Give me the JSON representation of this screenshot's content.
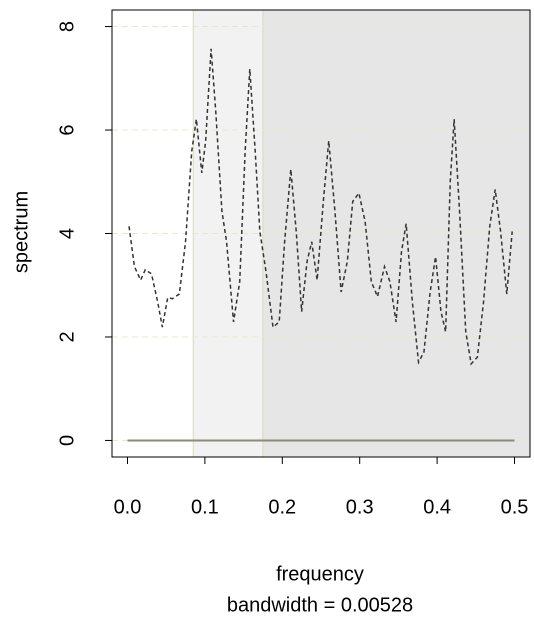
{
  "chart_data": {
    "type": "line",
    "xlabel": "frequency",
    "sublabel": "bandwidth = 0.00528",
    "ylabel": "spectrum",
    "x": [
      0.002,
      0.009,
      0.017,
      0.023,
      0.031,
      0.039,
      0.045,
      0.052,
      0.058,
      0.067,
      0.075,
      0.083,
      0.089,
      0.096,
      0.101,
      0.108,
      0.114,
      0.122,
      0.128,
      0.137,
      0.145,
      0.152,
      0.158,
      0.165,
      0.171,
      0.179,
      0.188,
      0.196,
      0.203,
      0.211,
      0.218,
      0.225,
      0.232,
      0.238,
      0.245,
      0.253,
      0.26,
      0.268,
      0.276,
      0.284,
      0.291,
      0.299,
      0.307,
      0.315,
      0.323,
      0.332,
      0.339,
      0.347,
      0.354,
      0.36,
      0.368,
      0.376,
      0.383,
      0.391,
      0.398,
      0.405,
      0.411,
      0.417,
      0.422,
      0.429,
      0.437,
      0.444,
      0.452,
      0.46,
      0.468,
      0.475,
      0.482,
      0.49,
      0.497
    ],
    "series": [
      {
        "color": "#333333",
        "dash": "4,3",
        "values": [
          4.14,
          3.36,
          3.1,
          3.3,
          3.22,
          2.68,
          2.19,
          2.76,
          2.74,
          2.83,
          3.84,
          5.59,
          6.21,
          5.17,
          5.79,
          7.57,
          6.37,
          4.43,
          3.84,
          2.29,
          3.07,
          5.59,
          7.18,
          5.59,
          4.04,
          3.26,
          2.19,
          2.29,
          3.84,
          5.24,
          4.04,
          2.49,
          3.46,
          3.84,
          3.1,
          4.62,
          5.79,
          4.43,
          2.87,
          3.46,
          4.62,
          4.78,
          4.23,
          3.07,
          2.78,
          3.36,
          3.07,
          2.29,
          3.65,
          4.19,
          2.68,
          1.51,
          1.71,
          2.87,
          3.55,
          2.49,
          2.1,
          5.01,
          6.21,
          4.43,
          2.1,
          1.48,
          1.61,
          2.68,
          4.14,
          4.85,
          4.04,
          2.83,
          4.04
        ]
      }
    ],
    "xlim": [
      -0.02,
      0.52
    ],
    "ylim": [
      -0.32,
      8.32
    ],
    "xticks": [
      {
        "value": 0,
        "label": "0.0"
      },
      0.1,
      0.2,
      0.3,
      0.4,
      0.5
    ],
    "yticks": [
      0,
      2,
      4,
      6,
      8
    ],
    "grid": true,
    "highlights": [
      {
        "from": 0.085,
        "to": 0.175,
        "color": "#f2f2f2"
      },
      {
        "from": 0.175,
        "to": 0.52,
        "color": "#e6e6e6"
      }
    ]
  }
}
